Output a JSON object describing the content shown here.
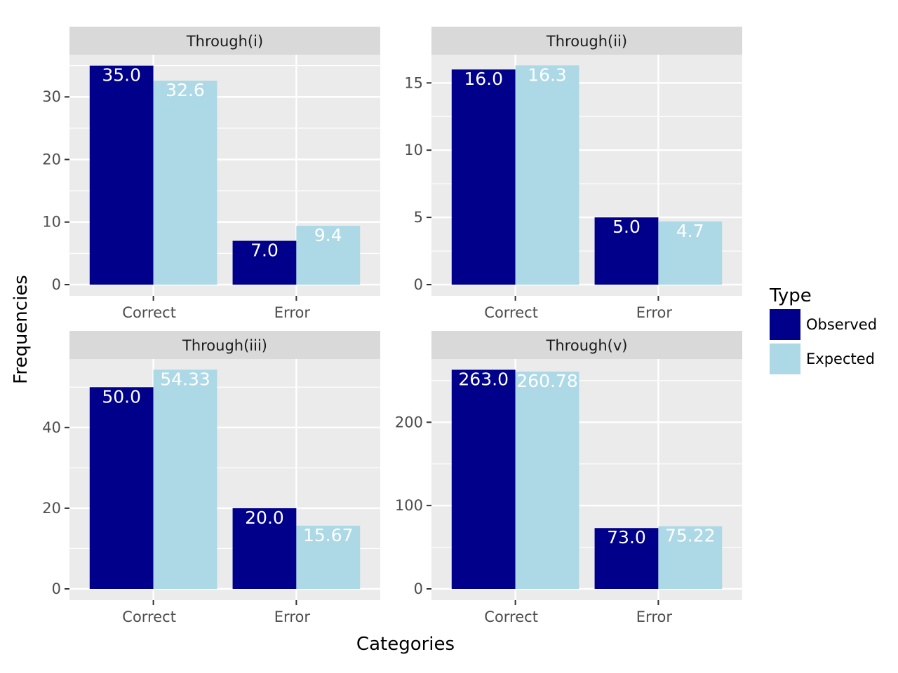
{
  "chart_data": {
    "type": "bar",
    "xlabel": "Categories",
    "ylabel": "Frequencies",
    "legend": {
      "title": "Type",
      "placement": "right",
      "entries": [
        {
          "name": "Observed",
          "color": "#00008b"
        },
        {
          "name": "Expected",
          "color": "#add8e6"
        }
      ]
    },
    "panels": [
      {
        "title": "Through(i)",
        "categories": [
          "Correct",
          "Error"
        ],
        "ylim": [
          0,
          36.75
        ],
        "yticks": [
          0,
          10,
          20,
          30
        ],
        "series": [
          {
            "name": "Observed",
            "values": [
              35.0,
              7.0
            ],
            "labels": [
              "35.0",
              "7.0"
            ]
          },
          {
            "name": "Expected",
            "values": [
              32.6,
              9.4
            ],
            "labels": [
              "32.6",
              "9.4"
            ]
          }
        ]
      },
      {
        "title": "Through(ii)",
        "categories": [
          "Correct",
          "Error"
        ],
        "ylim": [
          0,
          17.1
        ],
        "yticks": [
          0,
          5,
          10,
          15
        ],
        "series": [
          {
            "name": "Observed",
            "values": [
              16.0,
              5.0
            ],
            "labels": [
              "16.0",
              "5.0"
            ]
          },
          {
            "name": "Expected",
            "values": [
              16.3,
              4.7
            ],
            "labels": [
              "16.3",
              "4.7"
            ]
          }
        ]
      },
      {
        "title": "Through(iii)",
        "categories": [
          "Correct",
          "Error"
        ],
        "ylim": [
          0,
          57.0
        ],
        "yticks": [
          0,
          20,
          40
        ],
        "series": [
          {
            "name": "Observed",
            "values": [
              50.0,
              20.0
            ],
            "labels": [
              "50.0",
              "20.0"
            ]
          },
          {
            "name": "Expected",
            "values": [
              54.33,
              15.67
            ],
            "labels": [
              "54.33",
              "15.67"
            ]
          }
        ]
      },
      {
        "title": "Through(v)",
        "categories": [
          "Correct",
          "Error"
        ],
        "ylim": [
          0,
          276.0
        ],
        "yticks": [
          0,
          100,
          200
        ],
        "series": [
          {
            "name": "Observed",
            "values": [
              263.0,
              73.0
            ],
            "labels": [
              "263.0",
              "73.0"
            ]
          },
          {
            "name": "Expected",
            "values": [
              260.78,
              75.22
            ],
            "labels": [
              "260.78",
              "75.22"
            ]
          }
        ]
      }
    ]
  }
}
